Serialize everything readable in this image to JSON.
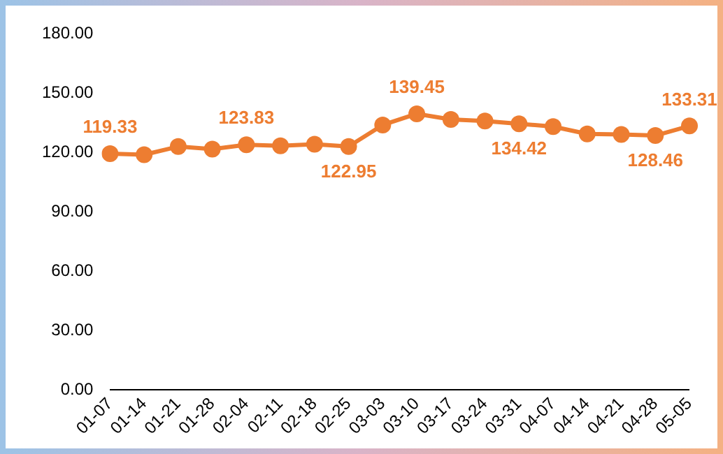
{
  "chart_data": {
    "type": "line",
    "categories": [
      "01-07",
      "01-14",
      "01-21",
      "01-28",
      "02-04",
      "02-11",
      "02-18",
      "02-25",
      "03-03",
      "03-10",
      "03-17",
      "03-24",
      "03-31",
      "04-07",
      "04-14",
      "04-21",
      "04-28",
      "05-05"
    ],
    "series": [
      {
        "color": "#ed7d31",
        "values": [
          119.33,
          118.8,
          122.9,
          121.6,
          123.83,
          123.3,
          124.1,
          122.95,
          133.8,
          139.45,
          136.6,
          135.8,
          134.42,
          133.0,
          129.3,
          129.0,
          128.46,
          133.31
        ],
        "value_labels": [
          "119.33",
          null,
          null,
          null,
          "123.83",
          null,
          null,
          "122.95",
          null,
          "139.45",
          null,
          null,
          "134.42",
          null,
          null,
          null,
          "128.46",
          "133.31"
        ]
      }
    ],
    "ylim": [
      0,
      180
    ],
    "yticks": [
      {
        "value": 0,
        "label": "0.00"
      },
      {
        "value": 30,
        "label": "30.00"
      },
      {
        "value": 60,
        "label": "60.00"
      },
      {
        "value": 90,
        "label": "90.00"
      },
      {
        "value": 120,
        "label": "120.00"
      },
      {
        "value": 150,
        "label": "150.00"
      },
      {
        "value": 180,
        "label": "180.00"
      }
    ],
    "grid": false,
    "legend": false,
    "marker": "circle",
    "line_style": "solid"
  }
}
